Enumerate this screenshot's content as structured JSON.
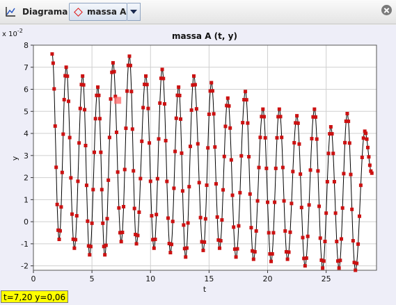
{
  "toolbar": {
    "diagram_label": "Diagrama",
    "series_label": "massa A"
  },
  "chart_data": {
    "type": "scatter",
    "title": "massa A (t, y)",
    "xlabel": "t",
    "ylabel": "y",
    "exponent_base": "x 10",
    "exponent_power": "-2",
    "xlim": [
      0,
      29.3
    ],
    "ylim": [
      -2.2,
      8.0
    ],
    "x_ticks": [
      0,
      5,
      10,
      15,
      20,
      25
    ],
    "y_ticks": [
      -2,
      -1,
      0,
      1,
      2,
      3,
      4,
      5,
      6,
      7,
      8
    ],
    "series": [
      {
        "line_color": "#000000",
        "marker_color": "#cc1111",
        "extrema": [
          [
            1.6,
            7.6
          ],
          [
            2.2,
            -0.8
          ],
          [
            2.8,
            7.0
          ],
          [
            3.5,
            -1.2
          ],
          [
            4.2,
            6.6
          ],
          [
            4.8,
            -1.5
          ],
          [
            5.5,
            6.1
          ],
          [
            6.1,
            -1.5
          ],
          [
            6.8,
            7.2
          ],
          [
            7.5,
            -0.9
          ],
          [
            8.2,
            7.5
          ],
          [
            8.8,
            -1.0
          ],
          [
            9.6,
            6.6
          ],
          [
            10.3,
            -1.2
          ],
          [
            11.0,
            6.9
          ],
          [
            11.7,
            -1.4
          ],
          [
            12.4,
            6.1
          ],
          [
            13.0,
            -1.6
          ],
          [
            13.7,
            6.6
          ],
          [
            14.5,
            -1.3
          ],
          [
            15.2,
            6.3
          ],
          [
            15.9,
            -1.2
          ],
          [
            16.6,
            5.6
          ],
          [
            17.3,
            -1.6
          ],
          [
            18.1,
            5.9
          ],
          [
            18.8,
            -1.7
          ],
          [
            19.6,
            5.1
          ],
          [
            20.3,
            -1.8
          ],
          [
            21.0,
            5.1
          ],
          [
            21.7,
            -1.7
          ],
          [
            22.5,
            4.8
          ],
          [
            23.2,
            -2.0
          ],
          [
            24.0,
            5.1
          ],
          [
            24.7,
            -2.1
          ],
          [
            25.4,
            4.3
          ],
          [
            26.1,
            -2.1
          ],
          [
            26.8,
            4.9
          ],
          [
            27.5,
            -2.2
          ],
          [
            28.3,
            4.1
          ],
          [
            28.9,
            2.2
          ]
        ]
      }
    ]
  },
  "cursor_marker": {
    "t": 7.2,
    "y": 5.5
  },
  "status": "t=7,20  y=0,06"
}
